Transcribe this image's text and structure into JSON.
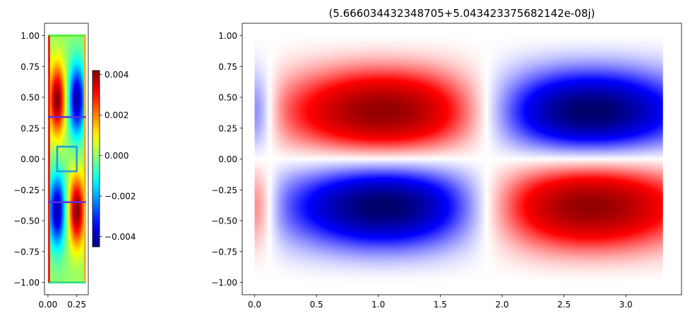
{
  "chart_data": [
    {
      "type": "heatmap",
      "colormap": "jet",
      "title": "",
      "xlabel": "",
      "ylabel": "",
      "xlim": [
        -0.03,
        0.35
      ],
      "ylim": [
        -1.1,
        1.1
      ],
      "x_ticks": [
        0.0,
        0.25
      ],
      "x_tick_labels": [
        "0.00",
        "0.25"
      ],
      "y_ticks": [
        1.0,
        0.75,
        0.5,
        0.25,
        0.0,
        -0.25,
        -0.5,
        -0.75,
        -1.0
      ],
      "y_tick_labels": [
        "1.00",
        "0.75",
        "0.50",
        "0.25",
        "0.00",
        "−0.25",
        "−0.50",
        "−0.75",
        "−1.00"
      ],
      "field_extent": {
        "x": [
          0.0,
          0.33
        ],
        "y": [
          -1.0,
          1.0
        ]
      },
      "field_peaks": [
        {
          "x": 0.08,
          "y": 0.48,
          "value": 0.0042
        },
        {
          "x": 0.25,
          "y": 0.48,
          "value": -0.0042
        },
        {
          "x": 0.08,
          "y": -0.42,
          "value": -0.0042
        },
        {
          "x": 0.25,
          "y": -0.42,
          "value": 0.0042
        }
      ],
      "overlays": [
        {
          "kind": "line",
          "color": "#5b2ee6",
          "x": [
            0.0,
            0.33
          ],
          "y": [
            0.34,
            0.34
          ]
        },
        {
          "kind": "line",
          "color": "#5b2ee6",
          "x": [
            0.0,
            0.33
          ],
          "y": [
            -0.35,
            -0.35
          ]
        },
        {
          "kind": "rectangle",
          "color": "#1f9fe0",
          "x": [
            0.08,
            0.25
          ],
          "y": [
            -0.1,
            0.1
          ]
        }
      ],
      "colorbar": {
        "range": [
          -0.0045,
          0.0042
        ],
        "ticks": [
          0.004,
          0.002,
          0.0,
          -0.002,
          -0.004
        ],
        "tick_labels": [
          "0.004",
          "0.002",
          "0.000",
          "−0.002",
          "−0.004"
        ]
      }
    },
    {
      "type": "heatmap",
      "colormap": "seismic",
      "title": "(5.666034432348705+5.043423375682142e-08j)",
      "xlabel": "",
      "ylabel": "",
      "xlim": [
        -0.1,
        3.45
      ],
      "ylim": [
        -1.1,
        1.1
      ],
      "x_ticks": [
        0.0,
        0.5,
        1.0,
        1.5,
        2.0,
        2.5,
        3.0
      ],
      "x_tick_labels": [
        "0.0",
        "0.5",
        "1.0",
        "1.5",
        "2.0",
        "2.5",
        "3.0"
      ],
      "y_ticks": [
        1.0,
        0.75,
        0.5,
        0.25,
        0.0,
        -0.25,
        -0.5,
        -0.75,
        -1.0
      ],
      "y_tick_labels": [
        "1.00",
        "0.75",
        "0.50",
        "0.25",
        "0.00",
        "−0.25",
        "−0.50",
        "−0.75",
        "−1.00"
      ],
      "field_extent": {
        "x": [
          0.0,
          3.3
        ],
        "y": [
          -1.0,
          1.0
        ]
      },
      "field_lobes": [
        {
          "x": 1.05,
          "y": 0.28,
          "value": 1.0
        },
        {
          "x": 2.7,
          "y": 0.28,
          "value": -1.0
        },
        {
          "x": 1.05,
          "y": -0.28,
          "value": -1.0
        },
        {
          "x": 2.7,
          "y": -0.28,
          "value": 1.0
        },
        {
          "x": 0.0,
          "y": 0.28,
          "value": -0.4
        },
        {
          "x": 0.0,
          "y": -0.28,
          "value": 0.4
        }
      ]
    }
  ]
}
